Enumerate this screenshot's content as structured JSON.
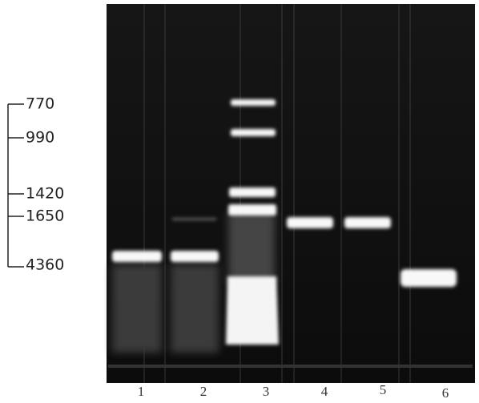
{
  "markers": [
    "770",
    "990",
    "1420",
    "1650",
    "4360"
  ],
  "lanes": [
    "1",
    "2",
    "3",
    "4",
    "5",
    "6"
  ]
}
